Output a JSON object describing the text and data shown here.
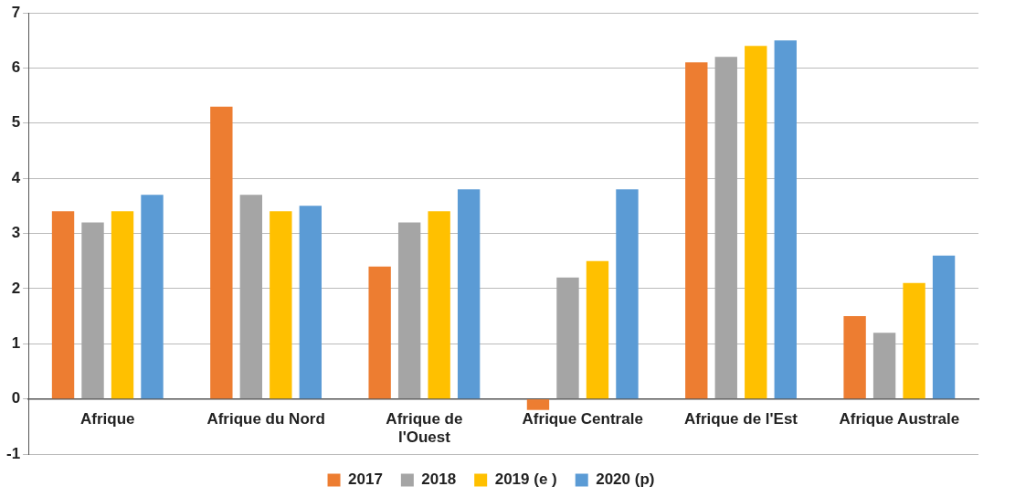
{
  "chart_data": {
    "type": "bar",
    "categories": [
      "Afrique",
      "Afrique du Nord",
      "Afrique de l'Ouest",
      "Afrique Centrale",
      "Afrique de l'Est",
      "Afrique Australe"
    ],
    "series": [
      {
        "name": "2017",
        "color": "#ed7d31",
        "values": [
          3.4,
          5.3,
          2.4,
          -0.2,
          6.1,
          1.5
        ]
      },
      {
        "name": "2018",
        "color": "#a5a5a5",
        "values": [
          3.2,
          3.7,
          3.2,
          2.2,
          6.2,
          1.2
        ]
      },
      {
        "name": "2019 (e )",
        "color": "#ffc000",
        "values": [
          3.4,
          3.4,
          3.4,
          2.5,
          6.4,
          2.1
        ]
      },
      {
        "name": "2020 (p)",
        "color": "#5b9bd5",
        "values": [
          3.7,
          3.5,
          3.8,
          3.8,
          6.5,
          2.6
        ]
      }
    ],
    "ylim": [
      -1,
      7
    ],
    "yticks": [
      -1,
      0,
      1,
      2,
      3,
      4,
      5,
      6,
      7
    ],
    "grid": "y",
    "legend": "bottom"
  }
}
